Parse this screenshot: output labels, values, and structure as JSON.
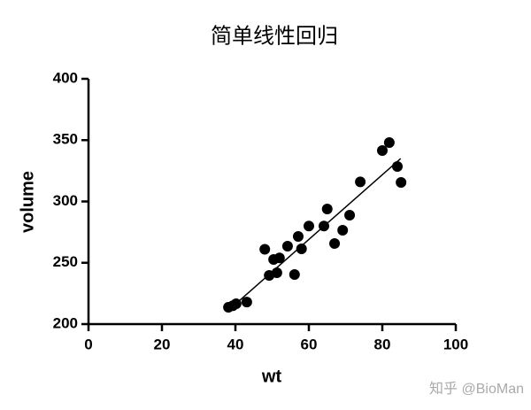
{
  "chart_data": {
    "type": "scatter",
    "title": "简单线性回归",
    "xlabel": "wt",
    "ylabel": "volume",
    "x": [
      38.1,
      39.3,
      40.2,
      43.1,
      48,
      49.2,
      50.4,
      51.3,
      52,
      54.2,
      56.1,
      57.1,
      58,
      60,
      64.1,
      65,
      67,
      69.2,
      71.1,
      74,
      80,
      81.9,
      84.1,
      85.1
    ],
    "values": [
      213.7,
      215,
      216.6,
      218,
      261,
      239.7,
      252.7,
      241.9,
      254,
      263.5,
      240.4,
      271.5,
      261.4,
      280,
      280,
      293.9,
      265.7,
      276.5,
      288.8,
      316,
      341.5,
      348,
      328.5,
      315.5
    ],
    "color": "#000000",
    "fit_line": {
      "x": [
        38,
        85
      ],
      "y": [
        211,
        335
      ]
    },
    "xlim": [
      0,
      100
    ],
    "xticks": [
      0,
      20,
      40,
      60,
      80,
      100
    ],
    "ylim": [
      200,
      400
    ],
    "yticks": [
      200,
      250,
      300,
      350,
      400
    ],
    "watermark": "知乎 @BioMan"
  }
}
